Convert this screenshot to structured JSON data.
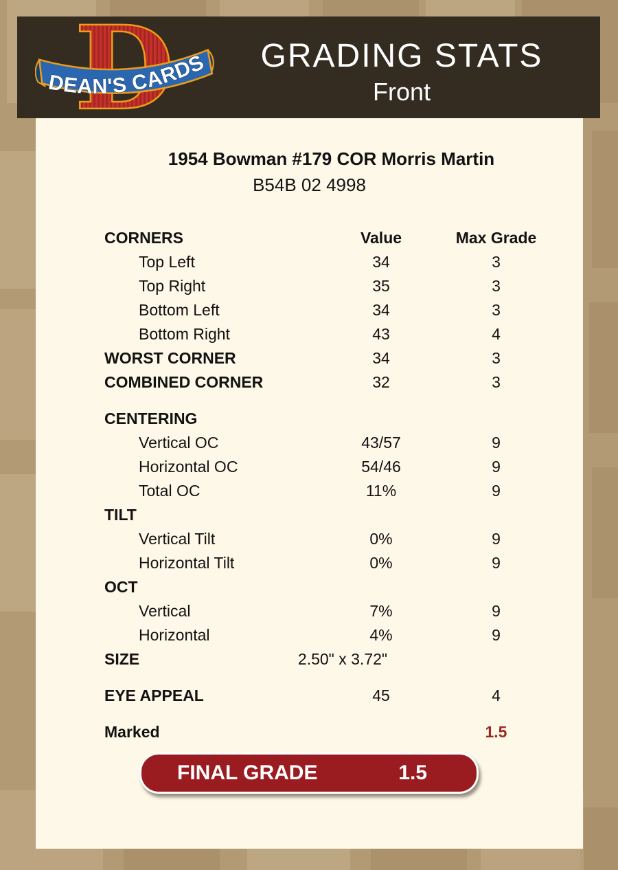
{
  "header": {
    "title": "GRADING STATS",
    "subtitle": "Front",
    "bar_color": "#342c21",
    "logo": {
      "letter": "D",
      "text": "DEAN'S CARDS",
      "red": "#c5322c",
      "blue": "#2b67b1",
      "orange": "#ef9d18"
    }
  },
  "card": {
    "title": "1954 Bowman #179 COR Morris Martin",
    "serial": "B54B 02 4998"
  },
  "table": {
    "rows": [
      {
        "label": "CORNERS",
        "value": "Value",
        "max": "Max Grade",
        "bold": true,
        "header": true
      },
      {
        "label": "Top Left",
        "value": "34",
        "max": "3",
        "indent": true
      },
      {
        "label": "Top Right",
        "value": "35",
        "max": "3",
        "indent": true
      },
      {
        "label": "Bottom Left",
        "value": "34",
        "max": "3",
        "indent": true
      },
      {
        "label": "Bottom Right",
        "value": "43",
        "max": "4",
        "indent": true
      },
      {
        "label": "WORST CORNER",
        "value": "34",
        "max": "3",
        "bold": true
      },
      {
        "label": "COMBINED CORNER",
        "value": "32",
        "max": "3",
        "bold": true
      },
      {
        "label": "CENTERING",
        "value": "",
        "max": "",
        "bold": true,
        "gap": true
      },
      {
        "label": "Vertical OC",
        "value": "43/57",
        "max": "9",
        "indent": true
      },
      {
        "label": "Horizontal OC",
        "value": "54/46",
        "max": "9",
        "indent": true
      },
      {
        "label": "Total OC",
        "value": "11%",
        "max": "9",
        "indent": true
      },
      {
        "label": "TILT",
        "value": "",
        "max": "",
        "bold": true
      },
      {
        "label": "Vertical Tilt",
        "value": "0%",
        "max": "9",
        "indent": true
      },
      {
        "label": "Horizontal Tilt",
        "value": "0%",
        "max": "9",
        "indent": true
      },
      {
        "label": "OCT",
        "value": "",
        "max": "",
        "bold": true
      },
      {
        "label": "Vertical",
        "value": "7%",
        "max": "9",
        "indent": true
      },
      {
        "label": "Horizontal",
        "value": "4%",
        "max": "9",
        "indent": true
      },
      {
        "label": "SIZE",
        "value": "2.50\" x 3.72\"",
        "max": "",
        "bold": true,
        "value_shift": true
      },
      {
        "label": "EYE APPEAL",
        "value": "45",
        "max": "4",
        "bold": true,
        "gap": true
      },
      {
        "label": "Marked",
        "value": "",
        "max": "1.5",
        "bold": true,
        "gap": true,
        "max_red": true
      }
    ]
  },
  "final_grade": {
    "label": "FINAL GRADE",
    "value": "1.5",
    "color": "#9b1c20"
  }
}
